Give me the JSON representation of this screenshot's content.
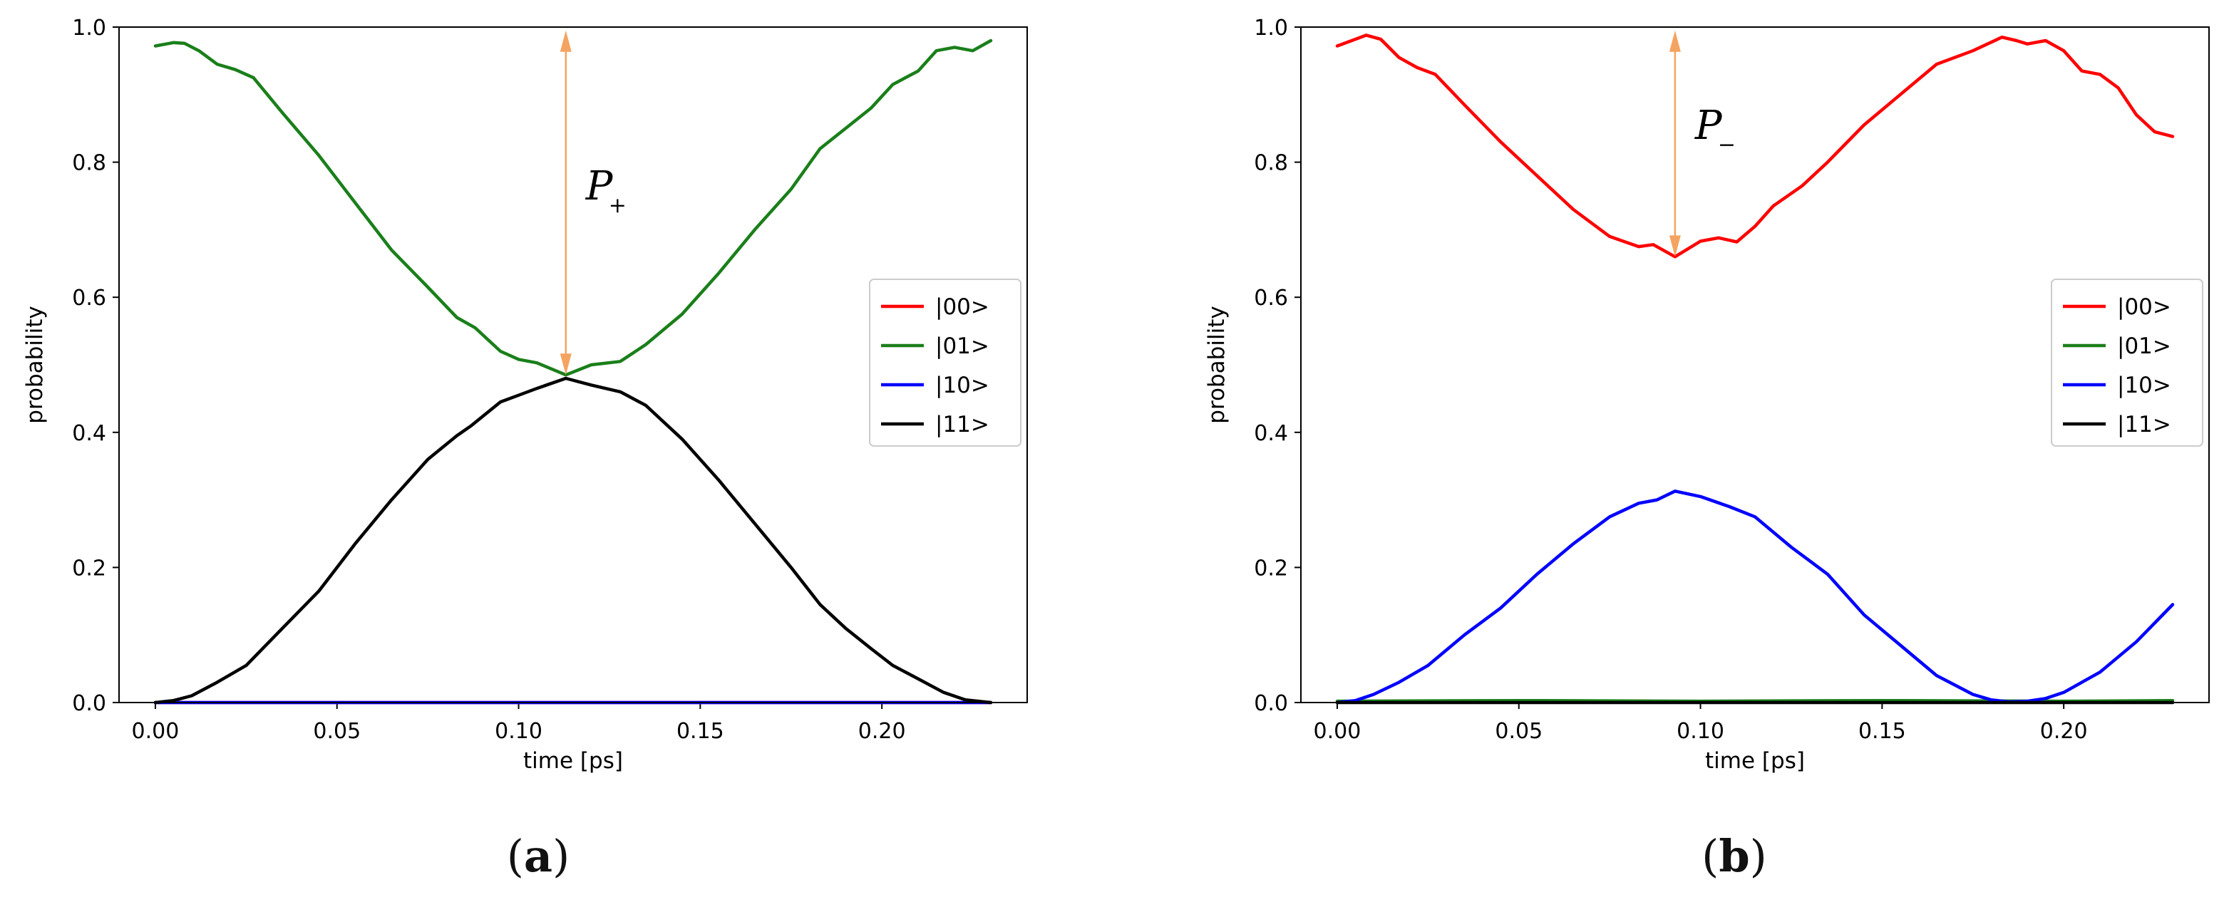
{
  "chart_data": [
    {
      "type": "line",
      "panel_label": "a",
      "xlabel": "time [ps]",
      "ylabel": "probability",
      "xlim": [
        -0.01,
        0.24
      ],
      "ylim": [
        0.0,
        1.0
      ],
      "xticks": [
        "0.00",
        "0.05",
        "0.10",
        "0.15",
        "0.20"
      ],
      "xtick_values": [
        0.0,
        0.05,
        0.1,
        0.15,
        0.2
      ],
      "yticks": [
        "0.0",
        "0.2",
        "0.4",
        "0.6",
        "0.8",
        "1.0"
      ],
      "ytick_values": [
        0.0,
        0.2,
        0.4,
        0.6,
        0.8,
        1.0
      ],
      "legend_position": "center-right",
      "annotation": {
        "symbol": "P",
        "subscript": "+",
        "arrow_x": 0.113,
        "arrow_from": 0.485,
        "arrow_to": 0.995,
        "color": "#f4a460"
      },
      "series": [
        {
          "name": "|00>",
          "color": "#ff0000",
          "x": [
            0.0,
            0.23
          ],
          "y": [
            0.0,
            0.0
          ]
        },
        {
          "name": "|01>",
          "color": "#1a7f1a",
          "x": [
            0.0,
            0.005,
            0.008,
            0.012,
            0.017,
            0.022,
            0.027,
            0.035,
            0.045,
            0.055,
            0.065,
            0.075,
            0.083,
            0.088,
            0.095,
            0.1,
            0.105,
            0.113,
            0.12,
            0.128,
            0.135,
            0.145,
            0.155,
            0.165,
            0.175,
            0.183,
            0.19,
            0.197,
            0.203,
            0.21,
            0.215,
            0.22,
            0.225,
            0.23
          ],
          "y": [
            0.972,
            0.977,
            0.976,
            0.965,
            0.945,
            0.937,
            0.925,
            0.873,
            0.81,
            0.74,
            0.67,
            0.615,
            0.57,
            0.555,
            0.52,
            0.508,
            0.503,
            0.485,
            0.5,
            0.505,
            0.53,
            0.575,
            0.635,
            0.7,
            0.76,
            0.82,
            0.85,
            0.88,
            0.915,
            0.935,
            0.965,
            0.97,
            0.965,
            0.98
          ]
        },
        {
          "name": "|10>",
          "color": "#0000ff",
          "x": [
            0.0,
            0.23
          ],
          "y": [
            0.0,
            0.0
          ]
        },
        {
          "name": "|11>",
          "color": "#000000",
          "x": [
            0.0,
            0.005,
            0.01,
            0.017,
            0.025,
            0.035,
            0.045,
            0.055,
            0.065,
            0.075,
            0.083,
            0.087,
            0.095,
            0.1,
            0.105,
            0.113,
            0.12,
            0.128,
            0.135,
            0.145,
            0.155,
            0.165,
            0.175,
            0.183,
            0.19,
            0.197,
            0.203,
            0.21,
            0.217,
            0.223,
            0.23
          ],
          "y": [
            0.0,
            0.003,
            0.01,
            0.03,
            0.055,
            0.11,
            0.165,
            0.235,
            0.3,
            0.36,
            0.395,
            0.41,
            0.445,
            0.455,
            0.465,
            0.48,
            0.47,
            0.46,
            0.44,
            0.39,
            0.33,
            0.265,
            0.2,
            0.145,
            0.11,
            0.08,
            0.055,
            0.035,
            0.015,
            0.004,
            0.0
          ]
        }
      ]
    },
    {
      "type": "line",
      "panel_label": "b",
      "xlabel": "time [ps]",
      "ylabel": "probability",
      "xlim": [
        -0.01,
        0.24
      ],
      "ylim": [
        0.0,
        1.0
      ],
      "xticks": [
        "0.00",
        "0.05",
        "0.10",
        "0.15",
        "0.20"
      ],
      "xtick_values": [
        0.0,
        0.05,
        0.1,
        0.15,
        0.2
      ],
      "yticks": [
        "0.0",
        "0.2",
        "0.4",
        "0.6",
        "0.8",
        "1.0"
      ],
      "ytick_values": [
        0.0,
        0.2,
        0.4,
        0.6,
        0.8,
        1.0
      ],
      "legend_position": "center-right",
      "annotation": {
        "symbol": "P",
        "subscript": "−",
        "arrow_x": 0.093,
        "arrow_from": 0.66,
        "arrow_to": 0.995,
        "color": "#f4a460"
      },
      "series": [
        {
          "name": "|00>",
          "color": "#ff0000",
          "x": [
            0.0,
            0.004,
            0.008,
            0.012,
            0.017,
            0.022,
            0.027,
            0.035,
            0.045,
            0.055,
            0.065,
            0.075,
            0.083,
            0.087,
            0.093,
            0.1,
            0.105,
            0.11,
            0.115,
            0.12,
            0.128,
            0.135,
            0.145,
            0.155,
            0.165,
            0.175,
            0.183,
            0.187,
            0.19,
            0.195,
            0.2,
            0.205,
            0.21,
            0.215,
            0.22,
            0.225,
            0.23
          ],
          "y": [
            0.972,
            0.98,
            0.988,
            0.982,
            0.955,
            0.94,
            0.93,
            0.885,
            0.83,
            0.78,
            0.73,
            0.69,
            0.675,
            0.678,
            0.66,
            0.683,
            0.688,
            0.682,
            0.705,
            0.735,
            0.765,
            0.8,
            0.855,
            0.9,
            0.945,
            0.965,
            0.985,
            0.98,
            0.975,
            0.98,
            0.965,
            0.935,
            0.93,
            0.91,
            0.87,
            0.845,
            0.838
          ]
        },
        {
          "name": "|01>",
          "color": "#1a7f1a",
          "x": [
            0.0,
            0.05,
            0.1,
            0.15,
            0.2,
            0.23
          ],
          "y": [
            0.002,
            0.003,
            0.002,
            0.003,
            0.002,
            0.003
          ]
        },
        {
          "name": "|10>",
          "color": "#0000ff",
          "x": [
            0.0,
            0.005,
            0.01,
            0.017,
            0.025,
            0.035,
            0.045,
            0.055,
            0.065,
            0.075,
            0.083,
            0.088,
            0.093,
            0.1,
            0.108,
            0.115,
            0.125,
            0.135,
            0.145,
            0.155,
            0.165,
            0.175,
            0.18,
            0.185,
            0.19,
            0.195,
            0.2,
            0.21,
            0.22,
            0.23
          ],
          "y": [
            0.0,
            0.003,
            0.012,
            0.03,
            0.055,
            0.1,
            0.14,
            0.19,
            0.235,
            0.275,
            0.295,
            0.3,
            0.313,
            0.305,
            0.29,
            0.275,
            0.23,
            0.19,
            0.13,
            0.085,
            0.04,
            0.012,
            0.004,
            0.001,
            0.002,
            0.006,
            0.015,
            0.045,
            0.09,
            0.145
          ]
        },
        {
          "name": "|11>",
          "color": "#000000",
          "x": [
            0.0,
            0.23
          ],
          "y": [
            0.0,
            0.0
          ]
        }
      ]
    }
  ]
}
